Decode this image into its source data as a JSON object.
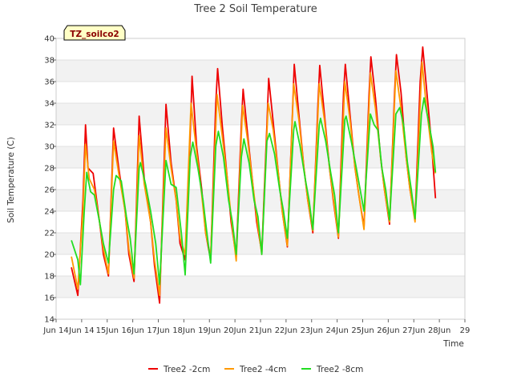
{
  "chart_data": {
    "type": "line",
    "title": "Tree 2 Soil Temperature",
    "xlabel": "Time",
    "ylabel": "Soil Temperature (C)",
    "ylim": [
      14,
      40
    ],
    "yticks": [
      14,
      16,
      18,
      20,
      22,
      24,
      26,
      28,
      30,
      32,
      34,
      36,
      38,
      40
    ],
    "xlim": [
      13,
      29
    ],
    "xticks": [
      13,
      14,
      15,
      16,
      17,
      18,
      19,
      20,
      21,
      22,
      23,
      24,
      25,
      26,
      27,
      28,
      29
    ],
    "xtick_labels": [
      "Jun 14",
      "Jun 14",
      "15Jun",
      "16Jun",
      "17Jun",
      "18Jun",
      "19Jun",
      "20Jun",
      "21Jun",
      "22Jun",
      "23Jun",
      "24Jun",
      "25Jun",
      "26Jun",
      "27Jun",
      "28Jun",
      "29"
    ],
    "grid": "horizontal bands",
    "legend_position": "bottom",
    "annotation": "TZ_soilco2",
    "series": [
      {
        "name": "Tree2 -2cm",
        "color": "#ee0000",
        "points": [
          [
            13.6,
            18.8
          ],
          [
            13.85,
            16.2
          ],
          [
            14.05,
            25
          ],
          [
            14.15,
            32
          ],
          [
            14.25,
            28
          ],
          [
            14.45,
            27.5
          ],
          [
            14.7,
            23
          ],
          [
            14.85,
            20
          ],
          [
            15.05,
            18
          ],
          [
            15.25,
            31.7
          ],
          [
            15.45,
            28
          ],
          [
            15.7,
            24
          ],
          [
            15.85,
            20
          ],
          [
            16.05,
            17.5
          ],
          [
            16.25,
            32.8
          ],
          [
            16.45,
            27
          ],
          [
            16.7,
            23
          ],
          [
            16.85,
            19
          ],
          [
            17.05,
            15.5
          ],
          [
            17.3,
            33.9
          ],
          [
            17.5,
            28.5
          ],
          [
            17.7,
            25
          ],
          [
            17.85,
            21
          ],
          [
            18.05,
            19.5
          ],
          [
            18.25,
            31
          ],
          [
            18.32,
            36.5
          ],
          [
            18.5,
            30
          ],
          [
            18.7,
            26
          ],
          [
            18.85,
            22
          ],
          [
            19.05,
            19.5
          ],
          [
            19.25,
            34
          ],
          [
            19.32,
            37.2
          ],
          [
            19.5,
            32
          ],
          [
            19.7,
            27
          ],
          [
            19.85,
            23
          ],
          [
            20.05,
            19.8
          ],
          [
            20.25,
            32
          ],
          [
            20.32,
            35.3
          ],
          [
            20.5,
            31
          ],
          [
            20.7,
            26.5
          ],
          [
            20.85,
            23
          ],
          [
            21.05,
            20.2
          ],
          [
            21.25,
            32
          ],
          [
            21.32,
            36.3
          ],
          [
            21.5,
            32.2
          ],
          [
            21.7,
            27.5
          ],
          [
            21.85,
            24
          ],
          [
            22.05,
            20.7
          ],
          [
            22.25,
            33
          ],
          [
            22.32,
            37.6
          ],
          [
            22.5,
            33
          ],
          [
            22.7,
            28
          ],
          [
            22.85,
            25
          ],
          [
            23.05,
            22
          ],
          [
            23.25,
            34
          ],
          [
            23.32,
            37.5
          ],
          [
            23.5,
            33
          ],
          [
            23.7,
            28
          ],
          [
            23.85,
            25
          ],
          [
            24.05,
            21.5
          ],
          [
            24.25,
            35
          ],
          [
            24.32,
            37.6
          ],
          [
            24.5,
            33
          ],
          [
            24.7,
            28
          ],
          [
            24.85,
            25.5
          ],
          [
            25.05,
            22.5
          ],
          [
            25.25,
            35
          ],
          [
            25.32,
            38.3
          ],
          [
            25.5,
            34.5
          ],
          [
            25.7,
            29
          ],
          [
            25.85,
            26
          ],
          [
            26.05,
            22.8
          ],
          [
            26.25,
            35
          ],
          [
            26.32,
            38.5
          ],
          [
            26.5,
            35
          ],
          [
            26.7,
            29
          ],
          [
            26.85,
            26
          ],
          [
            27.05,
            23.2
          ],
          [
            27.25,
            36
          ],
          [
            27.35,
            39.2
          ],
          [
            27.55,
            34
          ],
          [
            27.7,
            30
          ],
          [
            27.85,
            25.2
          ]
        ]
      },
      {
        "name": "Tree2 -4cm",
        "color": "#ff9900",
        "points": [
          [
            13.6,
            19.8
          ],
          [
            13.85,
            16.8
          ],
          [
            14.05,
            24
          ],
          [
            14.15,
            30.2
          ],
          [
            14.3,
            27
          ],
          [
            14.5,
            26
          ],
          [
            14.7,
            23
          ],
          [
            14.85,
            20.5
          ],
          [
            15.05,
            18.2
          ],
          [
            15.25,
            30.5
          ],
          [
            15.45,
            27.5
          ],
          [
            15.7,
            24
          ],
          [
            15.85,
            20.5
          ],
          [
            16.05,
            17.8
          ],
          [
            16.25,
            31
          ],
          [
            16.45,
            26.5
          ],
          [
            16.7,
            23
          ],
          [
            16.85,
            19.5
          ],
          [
            17.05,
            16.2
          ],
          [
            17.3,
            31.7
          ],
          [
            17.5,
            28
          ],
          [
            17.7,
            25
          ],
          [
            17.85,
            21.5
          ],
          [
            18.05,
            20
          ],
          [
            18.28,
            34
          ],
          [
            18.5,
            29.5
          ],
          [
            18.7,
            25.5
          ],
          [
            18.85,
            22
          ],
          [
            19.05,
            19.8
          ],
          [
            19.3,
            34.8
          ],
          [
            19.5,
            31
          ],
          [
            19.7,
            27
          ],
          [
            19.85,
            23.5
          ],
          [
            20.05,
            19.4
          ],
          [
            20.3,
            33.8
          ],
          [
            20.5,
            30.5
          ],
          [
            20.7,
            26.5
          ],
          [
            20.85,
            23.5
          ],
          [
            21.05,
            20
          ],
          [
            21.3,
            34
          ],
          [
            21.5,
            31.5
          ],
          [
            21.7,
            27.5
          ],
          [
            21.85,
            24
          ],
          [
            22.05,
            20.8
          ],
          [
            22.3,
            35.8
          ],
          [
            22.5,
            32.5
          ],
          [
            22.7,
            28
          ],
          [
            22.85,
            25
          ],
          [
            23.05,
            22.2
          ],
          [
            23.3,
            35.8
          ],
          [
            23.5,
            32.5
          ],
          [
            23.7,
            28
          ],
          [
            23.85,
            25.2
          ],
          [
            24.05,
            21.6
          ],
          [
            24.3,
            36
          ],
          [
            24.5,
            32.5
          ],
          [
            24.7,
            28
          ],
          [
            24.85,
            25.5
          ],
          [
            25.05,
            22.3
          ],
          [
            25.3,
            36.8
          ],
          [
            25.5,
            33.5
          ],
          [
            25.7,
            29
          ],
          [
            25.85,
            26
          ],
          [
            26.05,
            23
          ],
          [
            26.3,
            37
          ],
          [
            26.5,
            33.5
          ],
          [
            26.7,
            29
          ],
          [
            26.85,
            26
          ],
          [
            27.05,
            23
          ],
          [
            27.32,
            37.8
          ],
          [
            27.5,
            33.5
          ],
          [
            27.7,
            29.5
          ],
          [
            27.85,
            27.5
          ]
        ]
      },
      {
        "name": "Tree2 -8cm",
        "color": "#22dd22",
        "points": [
          [
            13.6,
            21.3
          ],
          [
            13.85,
            19.5
          ],
          [
            13.95,
            17.2
          ],
          [
            14.1,
            24
          ],
          [
            14.2,
            27.6
          ],
          [
            14.35,
            25.8
          ],
          [
            14.5,
            25.5
          ],
          [
            14.7,
            23
          ],
          [
            14.85,
            21
          ],
          [
            15.05,
            19.2
          ],
          [
            15.25,
            26
          ],
          [
            15.35,
            27.3
          ],
          [
            15.55,
            26.8
          ],
          [
            15.75,
            23.5
          ],
          [
            15.9,
            21.5
          ],
          [
            16.05,
            18.2
          ],
          [
            16.25,
            28
          ],
          [
            16.3,
            28.5
          ],
          [
            16.5,
            26.5
          ],
          [
            16.7,
            24
          ],
          [
            16.9,
            21
          ],
          [
            17.05,
            17.2
          ],
          [
            17.3,
            28.7
          ],
          [
            17.5,
            26.5
          ],
          [
            17.7,
            26.2
          ],
          [
            17.9,
            22
          ],
          [
            18.05,
            18.1
          ],
          [
            18.25,
            29
          ],
          [
            18.35,
            30.4
          ],
          [
            18.55,
            28
          ],
          [
            18.75,
            25
          ],
          [
            18.9,
            22
          ],
          [
            19.05,
            19.2
          ],
          [
            19.25,
            30
          ],
          [
            19.35,
            31.4
          ],
          [
            19.55,
            29
          ],
          [
            19.75,
            25
          ],
          [
            19.9,
            23
          ],
          [
            20.05,
            20
          ],
          [
            20.25,
            29
          ],
          [
            20.35,
            30.7
          ],
          [
            20.55,
            28.5
          ],
          [
            20.75,
            25
          ],
          [
            20.9,
            23.5
          ],
          [
            21.05,
            20
          ],
          [
            21.25,
            30.5
          ],
          [
            21.35,
            31.2
          ],
          [
            21.55,
            29.3
          ],
          [
            21.75,
            26
          ],
          [
            21.9,
            24
          ],
          [
            22.05,
            21.5
          ],
          [
            22.3,
            31.5
          ],
          [
            22.35,
            32.3
          ],
          [
            22.55,
            30
          ],
          [
            22.75,
            27
          ],
          [
            22.9,
            25
          ],
          [
            23.05,
            22.3
          ],
          [
            23.3,
            32
          ],
          [
            23.35,
            32.6
          ],
          [
            23.55,
            30.5
          ],
          [
            23.75,
            27.5
          ],
          [
            23.9,
            25.5
          ],
          [
            24.05,
            22
          ],
          [
            24.3,
            32.5
          ],
          [
            24.35,
            32.8
          ],
          [
            24.55,
            30.5
          ],
          [
            24.75,
            28
          ],
          [
            24.9,
            26
          ],
          [
            25.05,
            24
          ],
          [
            25.3,
            33
          ],
          [
            25.45,
            32
          ],
          [
            25.6,
            31.5
          ],
          [
            25.75,
            28
          ],
          [
            25.9,
            26
          ],
          [
            26.05,
            23.2
          ],
          [
            26.3,
            33
          ],
          [
            26.45,
            33.6
          ],
          [
            26.6,
            32
          ],
          [
            26.75,
            28.5
          ],
          [
            26.9,
            26
          ],
          [
            27.05,
            23.3
          ],
          [
            27.3,
            33
          ],
          [
            27.4,
            34.5
          ],
          [
            27.6,
            32
          ],
          [
            27.75,
            30
          ],
          [
            27.85,
            27.6
          ]
        ]
      }
    ]
  }
}
